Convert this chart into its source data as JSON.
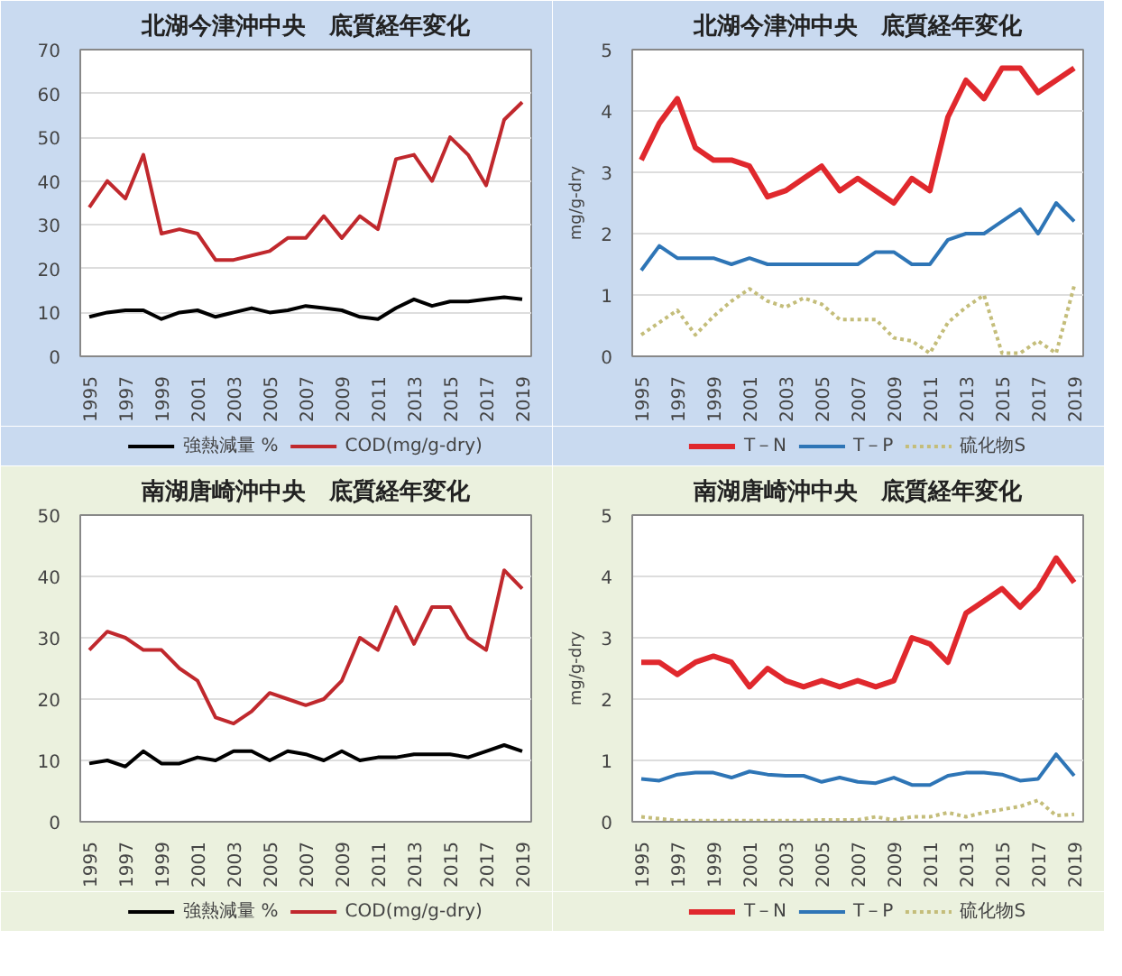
{
  "chart_data": [
    {
      "type": "line",
      "title": "北湖今津沖中央　底質経年変化",
      "x": [
        1995,
        1996,
        1997,
        1998,
        1999,
        2000,
        2001,
        2002,
        2003,
        2004,
        2005,
        2006,
        2007,
        2008,
        2009,
        2010,
        2011,
        2012,
        2013,
        2014,
        2015,
        2016,
        2017,
        2018,
        2019
      ],
      "xlim": [
        1994.5,
        2019.5
      ],
      "xticks": [
        1995,
        1997,
        1999,
        2001,
        2003,
        2005,
        2007,
        2009,
        2011,
        2013,
        2015,
        2017,
        2019
      ],
      "ylim": [
        0,
        70
      ],
      "yticks": [
        0,
        10,
        20,
        30,
        40,
        50,
        60,
        70
      ],
      "grid": "y",
      "legend": "bottom",
      "marker": "none",
      "series": [
        {
          "name": "強熱減量 %",
          "color": "#000000",
          "values": [
            9,
            10,
            10.5,
            10.5,
            8.5,
            10,
            10.5,
            9,
            10,
            11,
            10,
            10.5,
            11.5,
            11,
            10.5,
            9,
            8.5,
            11,
            13,
            11.5,
            12.5,
            12.5,
            13,
            13.5,
            13
          ]
        },
        {
          "name": "COD(mg/g-dry)",
          "color": "#c0282d",
          "values": [
            34,
            40,
            36,
            46,
            28,
            29,
            28,
            22,
            22,
            23,
            24,
            27,
            27,
            32,
            27,
            32,
            29,
            45,
            46,
            40,
            50,
            46,
            39,
            54,
            58
          ]
        }
      ]
    },
    {
      "type": "line",
      "title": "北湖今津沖中央　底質経年変化",
      "ylabel": "mg/g-dry",
      "x": [
        1995,
        1996,
        1997,
        1998,
        1999,
        2000,
        2001,
        2002,
        2003,
        2004,
        2005,
        2006,
        2007,
        2008,
        2009,
        2010,
        2011,
        2012,
        2013,
        2014,
        2015,
        2016,
        2017,
        2018,
        2019
      ],
      "xlim": [
        1994.5,
        2019.5
      ],
      "xticks": [
        1995,
        1997,
        1999,
        2001,
        2003,
        2005,
        2007,
        2009,
        2011,
        2013,
        2015,
        2017,
        2019
      ],
      "ylim": [
        0,
        5
      ],
      "yticks": [
        0,
        1,
        2,
        3,
        4,
        5
      ],
      "grid": "y",
      "legend": "bottom",
      "marker": "none",
      "series": [
        {
          "name": "T－N",
          "color": "#e0282d",
          "values": [
            3.2,
            3.8,
            4.2,
            3.4,
            3.2,
            3.2,
            3.1,
            2.6,
            2.7,
            2.9,
            3.1,
            2.7,
            2.9,
            2.7,
            2.5,
            2.9,
            2.7,
            3.9,
            4.5,
            4.2,
            4.7,
            4.7,
            4.3,
            4.5,
            4.7
          ]
        },
        {
          "name": "T－P",
          "color": "#2e75b6",
          "values": [
            1.4,
            1.8,
            1.6,
            1.6,
            1.6,
            1.5,
            1.6,
            1.5,
            1.5,
            1.5,
            1.5,
            1.5,
            1.5,
            1.7,
            1.7,
            1.5,
            1.5,
            1.9,
            2.0,
            2.0,
            2.2,
            2.4,
            2.0,
            2.5,
            2.2
          ]
        },
        {
          "name": "硫化物S",
          "color": "#c4bd7a",
          "line_style": "dotted",
          "values": [
            0.35,
            0.55,
            0.75,
            0.35,
            0.65,
            0.9,
            1.1,
            0.9,
            0.8,
            0.95,
            0.85,
            0.6,
            0.6,
            0.6,
            0.3,
            0.25,
            0.05,
            0.55,
            0.8,
            1.0,
            0.05,
            0.05,
            0.25,
            0.05,
            1.15
          ]
        }
      ]
    },
    {
      "type": "line",
      "title": "南湖唐崎沖中央　底質経年変化",
      "x": [
        1995,
        1996,
        1997,
        1998,
        1999,
        2000,
        2001,
        2002,
        2003,
        2004,
        2005,
        2006,
        2007,
        2008,
        2009,
        2010,
        2011,
        2012,
        2013,
        2014,
        2015,
        2016,
        2017,
        2018,
        2019
      ],
      "xlim": [
        1994.5,
        2019.5
      ],
      "xticks": [
        1995,
        1997,
        1999,
        2001,
        2003,
        2005,
        2007,
        2009,
        2011,
        2013,
        2015,
        2017,
        2019
      ],
      "ylim": [
        0,
        50
      ],
      "yticks": [
        0,
        10,
        20,
        30,
        40,
        50
      ],
      "grid": "y",
      "legend": "bottom",
      "marker": "none",
      "series": [
        {
          "name": "強熱減量 %",
          "color": "#000000",
          "values": [
            9.5,
            10,
            9,
            11.5,
            9.5,
            9.5,
            10.5,
            10,
            11.5,
            11.5,
            10,
            11.5,
            11,
            10,
            11.5,
            10,
            10.5,
            10.5,
            11,
            11,
            11,
            10.5,
            11.5,
            12.5,
            11.5
          ]
        },
        {
          "name": "COD(mg/g-dry)",
          "color": "#c0282d",
          "values": [
            28,
            31,
            30,
            28,
            28,
            25,
            23,
            17,
            16,
            18,
            21,
            20,
            19,
            20,
            23,
            30,
            28,
            35,
            29,
            35,
            35,
            30,
            28,
            41,
            38
          ]
        }
      ]
    },
    {
      "type": "line",
      "title": "南湖唐崎沖中央　底質経年変化",
      "ylabel": "mg/g-dry",
      "x": [
        1995,
        1996,
        1997,
        1998,
        1999,
        2000,
        2001,
        2002,
        2003,
        2004,
        2005,
        2006,
        2007,
        2008,
        2009,
        2010,
        2011,
        2012,
        2013,
        2014,
        2015,
        2016,
        2017,
        2018,
        2019
      ],
      "xlim": [
        1994.5,
        2019.5
      ],
      "xticks": [
        1995,
        1997,
        1999,
        2001,
        2003,
        2005,
        2007,
        2009,
        2011,
        2013,
        2015,
        2017,
        2019
      ],
      "ylim": [
        0,
        5
      ],
      "yticks": [
        0,
        1,
        2,
        3,
        4,
        5
      ],
      "grid": "y",
      "legend": "bottom",
      "marker": "none",
      "series": [
        {
          "name": "T－N",
          "color": "#e0282d",
          "values": [
            2.6,
            2.6,
            2.4,
            2.6,
            2.7,
            2.6,
            2.2,
            2.5,
            2.3,
            2.2,
            2.3,
            2.2,
            2.3,
            2.2,
            2.3,
            3.0,
            2.9,
            2.6,
            3.4,
            3.6,
            3.8,
            3.5,
            3.8,
            4.3,
            3.9
          ]
        },
        {
          "name": "T－P",
          "color": "#2e75b6",
          "values": [
            0.7,
            0.67,
            0.77,
            0.8,
            0.8,
            0.72,
            0.82,
            0.77,
            0.75,
            0.75,
            0.65,
            0.72,
            0.65,
            0.63,
            0.72,
            0.6,
            0.6,
            0.75,
            0.8,
            0.8,
            0.77,
            0.67,
            0.7,
            1.1,
            0.75
          ]
        },
        {
          "name": "硫化物S",
          "color": "#c4bd7a",
          "line_style": "dotted",
          "values": [
            0.08,
            0.05,
            0.02,
            0.02,
            0.02,
            0.02,
            0.02,
            0.02,
            0.02,
            0.02,
            0.03,
            0.03,
            0.03,
            0.08,
            0.03,
            0.08,
            0.08,
            0.15,
            0.08,
            0.15,
            0.2,
            0.25,
            0.35,
            0.1,
            0.12
          ]
        }
      ]
    }
  ]
}
